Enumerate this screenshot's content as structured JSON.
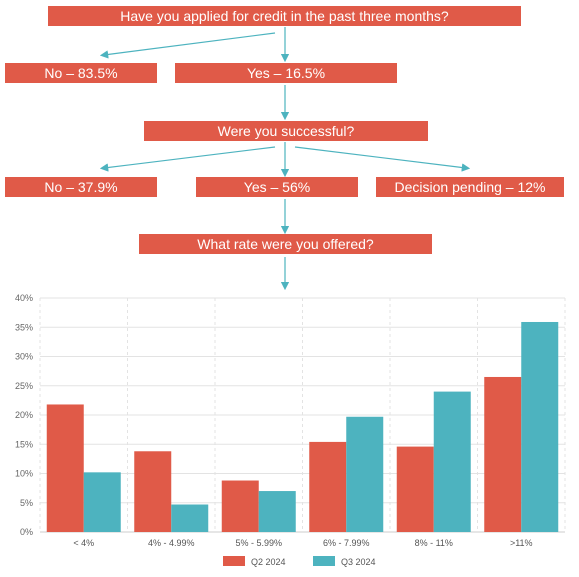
{
  "flowchart": {
    "q1": "Have you applied for credit in the past three months?",
    "q1_no": "No – 83.5%",
    "q1_yes": "Yes – 16.5%",
    "q2": "Were you successful?",
    "q2_no": "No – 37.9%",
    "q2_yes": "Yes – 56%",
    "q2_pending": "Decision pending – 12%",
    "q3": "What rate were you offered?",
    "box_color": "#e05a48",
    "arrow_color": "#4db3bf"
  },
  "chart_data": {
    "type": "bar",
    "categories": [
      "< 4%",
      "4% - 4.99%",
      "5% - 5.99%",
      "6% - 7.99%",
      "8% - 11%",
      ">11%"
    ],
    "series": [
      {
        "name": "Q2 2024",
        "color": "#e05a48",
        "values": [
          21.8,
          13.8,
          8.8,
          15.4,
          14.6,
          26.5
        ]
      },
      {
        "name": "Q3 2024",
        "color": "#4db3bf",
        "values": [
          10.2,
          4.7,
          7.0,
          19.7,
          24.0,
          35.9
        ]
      }
    ],
    "ylim": [
      0,
      40
    ],
    "yticks": [
      "0%",
      "5%",
      "10%",
      "15%",
      "20%",
      "25%",
      "30%",
      "35%",
      "40%"
    ],
    "grid": true,
    "legend": "bottom"
  }
}
